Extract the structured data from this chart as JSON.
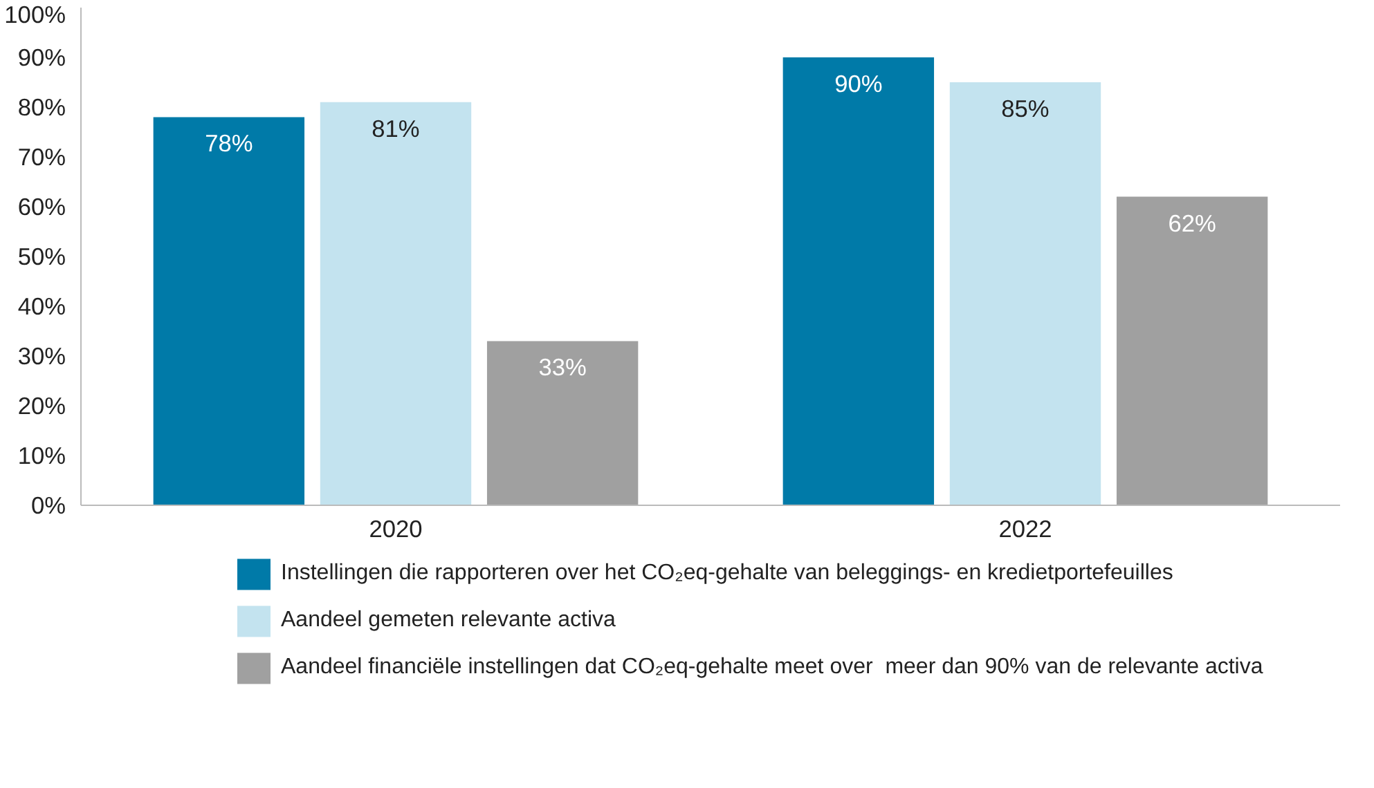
{
  "chart_data": {
    "type": "bar",
    "categories": [
      "2020",
      "2022"
    ],
    "series": [
      {
        "name": "Instellingen die rapporteren over het CO₂eq-gehalte van beleggings- en kredietportefeuilles",
        "color": "#007aa8",
        "values": [
          78,
          90
        ],
        "value_labels": [
          "78%",
          "90%"
        ]
      },
      {
        "name": "Aandeel gemeten relevante activa",
        "color": "#c3e3ef",
        "values": [
          81,
          85
        ],
        "value_labels": [
          "81%",
          "85%"
        ]
      },
      {
        "name": "Aandeel financiële instellingen dat CO₂eq-gehalte meet over  meer dan 90% van de relevante activa",
        "color": "#a0a0a0",
        "values": [
          33,
          62
        ],
        "value_labels": [
          "33%",
          "62%"
        ]
      }
    ],
    "ylim": [
      0,
      100
    ],
    "yticks": [
      {
        "value": 0,
        "label": "0%"
      },
      {
        "value": 10,
        "label": "10%"
      },
      {
        "value": 20,
        "label": "20%"
      },
      {
        "value": 30,
        "label": "30%"
      },
      {
        "value": 40,
        "label": "40%"
      },
      {
        "value": 50,
        "label": "50%"
      },
      {
        "value": 60,
        "label": "60%"
      },
      {
        "value": 70,
        "label": "70%"
      },
      {
        "value": 80,
        "label": "80%"
      },
      {
        "value": 90,
        "label": "90%"
      },
      {
        "value": 100,
        "label": "100%"
      }
    ],
    "grid": false,
    "legend": "bottom"
  }
}
